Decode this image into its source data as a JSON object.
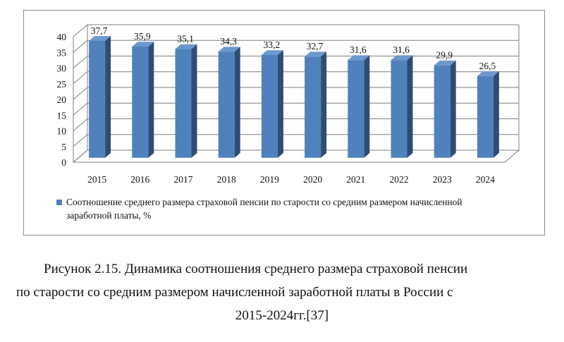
{
  "chart_data": {
    "type": "bar",
    "categories": [
      "2015",
      "2016",
      "2017",
      "2018",
      "2019",
      "2020",
      "2021",
      "2022",
      "2023",
      "2024"
    ],
    "values": [
      37.7,
      35.9,
      35.1,
      34.3,
      33.2,
      32.7,
      31.6,
      31.6,
      29.9,
      26.5
    ],
    "data_labels": [
      "37,7",
      "35,9",
      "35,1",
      "34,3",
      "33,2",
      "32,7",
      "31,6",
      "31,6",
      "29,9",
      "26,5"
    ],
    "yticks": [
      0,
      5,
      10,
      15,
      20,
      25,
      30,
      35,
      40
    ],
    "ylim": [
      0,
      40
    ],
    "series": [
      {
        "name": "Соотношение среднего размера страховой пенсии по старости со средним размером начисленной заработной платы, %"
      }
    ],
    "legend_position": "bottom",
    "bar_style": "3d",
    "grid": true,
    "colors": {
      "bar_front": "#4f81bd",
      "bar_side": "#2c4d75",
      "bar_top": "#6d98cc"
    }
  },
  "caption": {
    "line1": "Рисунок 2.15. Динамика соотношения среднего размера страховой пенсии",
    "line2": "по старости со средним размером начисленной заработной платы в России с",
    "line3": "2015-2024гг.[37]"
  }
}
